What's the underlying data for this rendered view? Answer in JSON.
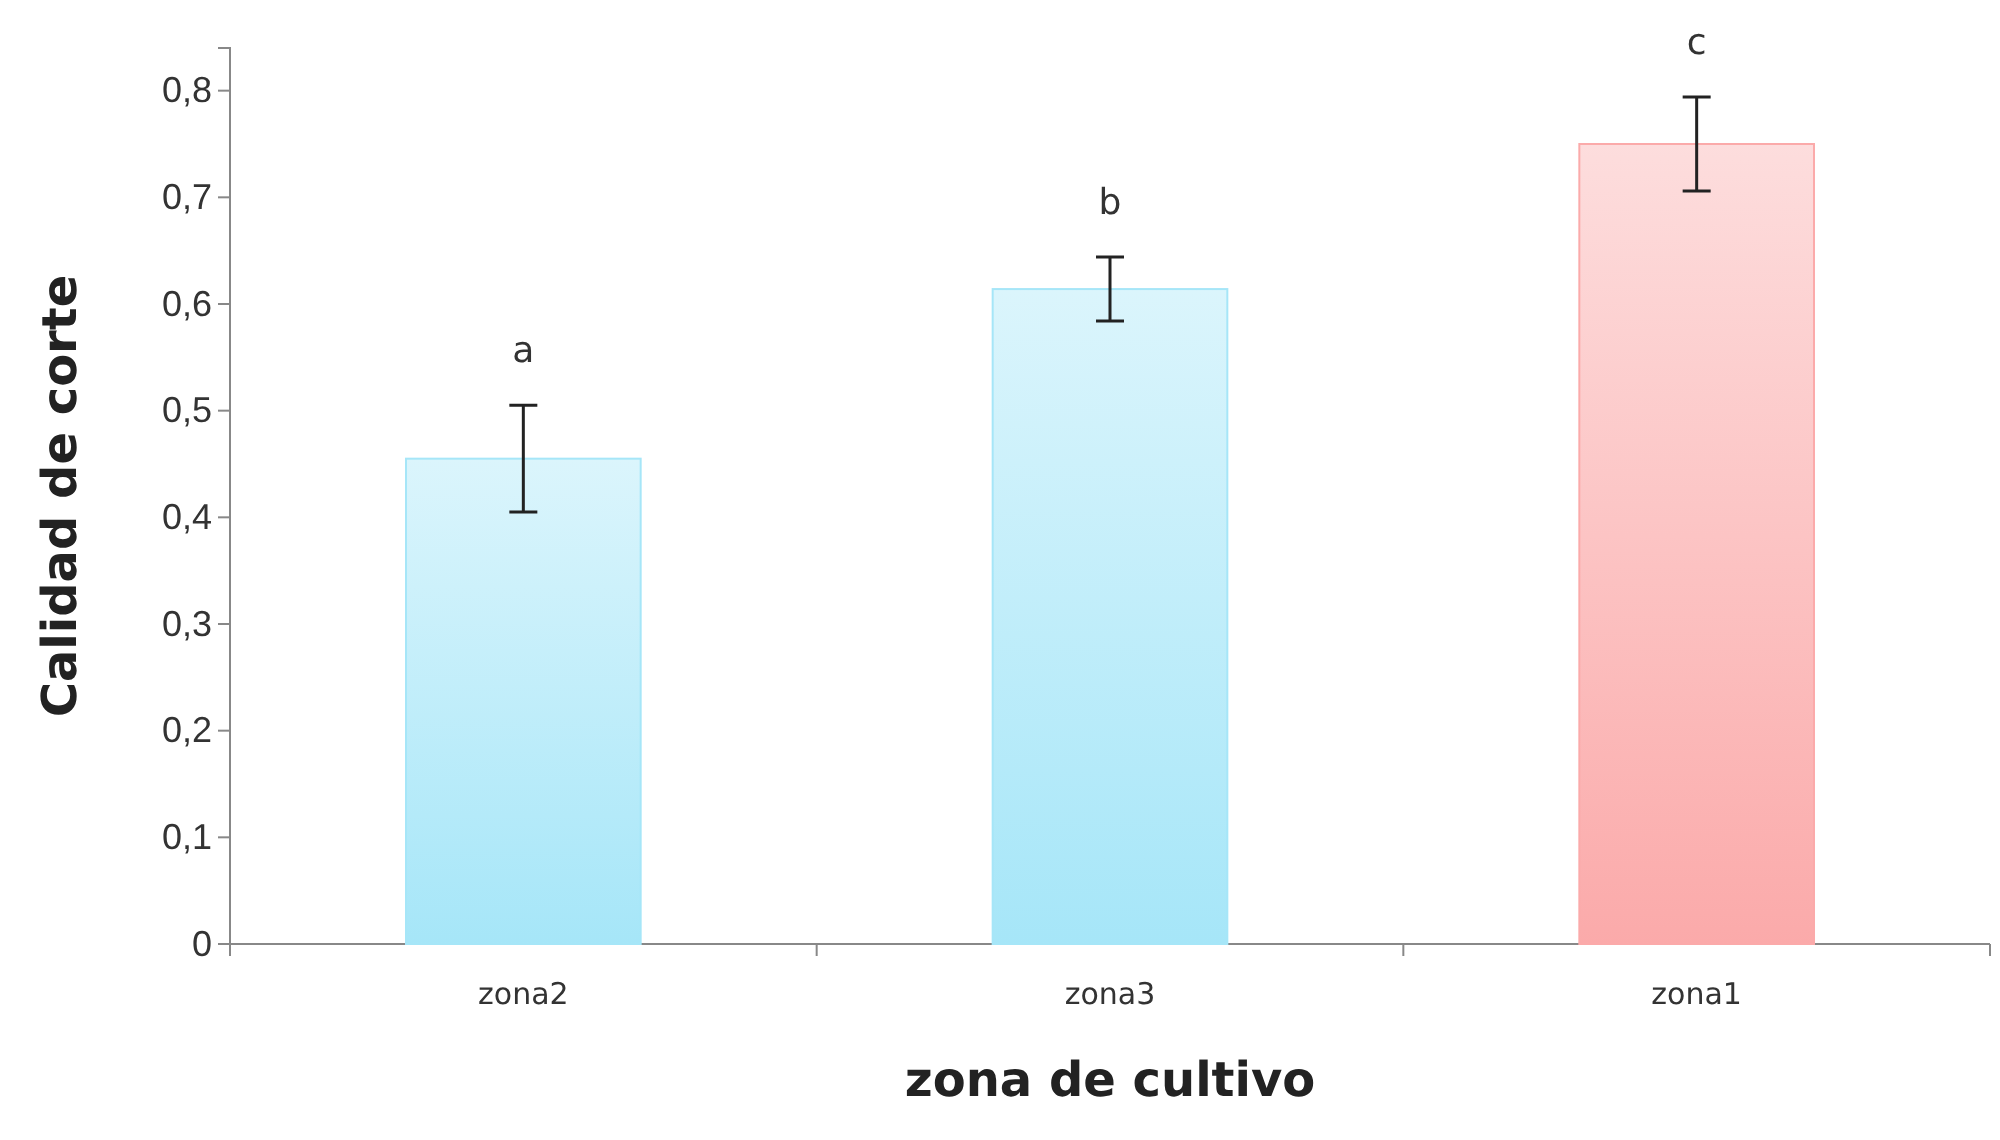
{
  "chart_data": {
    "type": "bar",
    "xlabel": "zona de cultivo",
    "ylabel": "Calidad de corte",
    "categories": [
      "zona2",
      "zona3",
      "zona1"
    ],
    "values": [
      0.455,
      0.614,
      0.75
    ],
    "errors": [
      0.05,
      0.03,
      0.044
    ],
    "colors": [
      "#a6e6f8",
      "#a6e6f8",
      "#fbaaaa"
    ],
    "ylim": [
      0,
      0.84
    ],
    "yticks": [
      {
        "value": 0,
        "label": "0"
      },
      {
        "value": 0.1,
        "label": "0,1"
      },
      {
        "value": 0.2,
        "label": "0,2"
      },
      {
        "value": 0.3,
        "label": "0,3"
      },
      {
        "value": 0.4,
        "label": "0,4"
      },
      {
        "value": 0.5,
        "label": "0,5"
      },
      {
        "value": 0.6,
        "label": "0,6"
      },
      {
        "value": 0.7,
        "label": "0,7"
      },
      {
        "value": 0.8,
        "label": "0,8"
      }
    ],
    "grid": false,
    "annotations": [
      "a",
      "b",
      "c"
    ]
  }
}
